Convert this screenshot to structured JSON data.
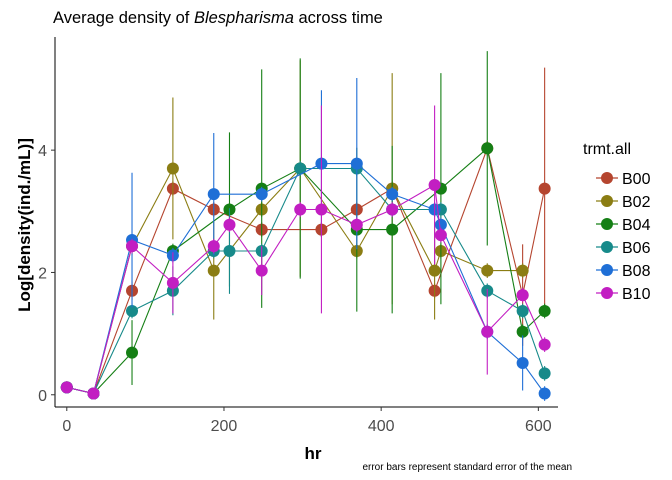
{
  "chart_data": {
    "type": "line",
    "title_parts": [
      "Average density of ",
      "Blespharisma",
      " across time"
    ],
    "xlabel": "hr",
    "ylabel": "Log[density(ind./mL)]",
    "caption": "error bars represent standard error of the mean",
    "legend_title": "trmt.all",
    "legend_position": "right",
    "grid": false,
    "xlim": [
      -15,
      625
    ],
    "ylim": [
      -0.2,
      5.85
    ],
    "x_ticks": [
      0,
      200,
      400,
      600
    ],
    "y_ticks": [
      0,
      2,
      4
    ],
    "series": [
      {
        "name": "B00",
        "color": "#b5452f",
        "points": [
          {
            "x": 0,
            "y": 0.12
          },
          {
            "x": 34,
            "y": 0.02
          },
          {
            "x": 83,
            "y": 1.7,
            "err": 0.15
          },
          {
            "x": 135,
            "y": 3.37,
            "err": 0.12
          },
          {
            "x": 187,
            "y": 3.03,
            "err": 0.12
          },
          {
            "x": 248,
            "y": 2.7,
            "err": 0.12
          },
          {
            "x": 324,
            "y": 2.7,
            "err": 0.12
          },
          {
            "x": 369,
            "y": 3.03,
            "err": 0.12
          },
          {
            "x": 414,
            "y": 3.37,
            "err": 0.12
          },
          {
            "x": 468,
            "y": 1.7,
            "err": 0.12
          },
          {
            "x": 535,
            "y": 4.03,
            "err": 0.12
          },
          {
            "x": 580,
            "y": 1.63,
            "err": 0.83
          },
          {
            "x": 608,
            "y": 3.37,
            "err": 1.98
          }
        ]
      },
      {
        "name": "B02",
        "color": "#8b7d13",
        "points": [
          {
            "x": 0,
            "y": 0.12
          },
          {
            "x": 34,
            "y": 0.02
          },
          {
            "x": 83,
            "y": 2.43,
            "err": 0.15
          },
          {
            "x": 135,
            "y": 3.7,
            "err": 1.16
          },
          {
            "x": 187,
            "y": 2.03,
            "err": 0.8
          },
          {
            "x": 248,
            "y": 3.03,
            "err": 0.12
          },
          {
            "x": 297,
            "y": 3.7,
            "err": 1.77
          },
          {
            "x": 369,
            "y": 2.35,
            "err": 0.12
          },
          {
            "x": 414,
            "y": 3.37,
            "err": 1.89
          },
          {
            "x": 468,
            "y": 2.03,
            "err": 0.8
          },
          {
            "x": 476,
            "y": 2.35,
            "err": 0.12
          },
          {
            "x": 535,
            "y": 2.03,
            "err": 0.12
          },
          {
            "x": 580,
            "y": 2.03,
            "err": 0.12
          }
        ]
      },
      {
        "name": "B04",
        "color": "#157f15",
        "points": [
          {
            "x": 0,
            "y": 0.12
          },
          {
            "x": 34,
            "y": 0.02
          },
          {
            "x": 83,
            "y": 0.69,
            "err": 0.53
          },
          {
            "x": 135,
            "y": 2.35,
            "err": 0.12
          },
          {
            "x": 207,
            "y": 3.03,
            "err": 1.26
          },
          {
            "x": 248,
            "y": 3.37,
            "err": 1.95
          },
          {
            "x": 297,
            "y": 3.7,
            "err": 1.8
          },
          {
            "x": 369,
            "y": 2.7,
            "err": 1.34
          },
          {
            "x": 414,
            "y": 2.7,
            "err": 1.37
          },
          {
            "x": 476,
            "y": 3.37,
            "err": 1.89
          },
          {
            "x": 535,
            "y": 4.03,
            "err": 1.59
          },
          {
            "x": 580,
            "y": 1.03,
            "err": 0.12
          },
          {
            "x": 608,
            "y": 1.37,
            "err": 0.12
          }
        ]
      },
      {
        "name": "B06",
        "color": "#178a8a",
        "points": [
          {
            "x": 0,
            "y": 0.12
          },
          {
            "x": 34,
            "y": 0.02
          },
          {
            "x": 83,
            "y": 1.37,
            "err": 0.12
          },
          {
            "x": 135,
            "y": 1.7,
            "err": 0.4
          },
          {
            "x": 187,
            "y": 2.35,
            "err": 0.12
          },
          {
            "x": 207,
            "y": 2.35,
            "err": 0.7
          },
          {
            "x": 248,
            "y": 2.35,
            "err": 0.12
          },
          {
            "x": 297,
            "y": 3.7,
            "err": 0.12
          },
          {
            "x": 369,
            "y": 3.7,
            "err": 0.12
          },
          {
            "x": 414,
            "y": 3.03,
            "err": 0.12
          },
          {
            "x": 476,
            "y": 3.03,
            "err": 0.12
          },
          {
            "x": 535,
            "y": 1.7,
            "err": 0.12
          },
          {
            "x": 580,
            "y": 1.37,
            "err": 0.12
          },
          {
            "x": 608,
            "y": 0.35,
            "err": 0.12
          }
        ]
      },
      {
        "name": "B08",
        "color": "#1f6fd6",
        "points": [
          {
            "x": 0,
            "y": 0.12
          },
          {
            "x": 34,
            "y": 0.02
          },
          {
            "x": 83,
            "y": 2.53,
            "err": 1.1
          },
          {
            "x": 135,
            "y": 2.28,
            "err": 0.12
          },
          {
            "x": 187,
            "y": 3.28,
            "err": 1.0
          },
          {
            "x": 248,
            "y": 3.28,
            "err": 0.12
          },
          {
            "x": 324,
            "y": 3.78,
            "err": 1.2
          },
          {
            "x": 369,
            "y": 3.78,
            "err": 1.4
          },
          {
            "x": 414,
            "y": 3.28,
            "err": 0.12
          },
          {
            "x": 468,
            "y": 3.03,
            "err": 0.12
          },
          {
            "x": 476,
            "y": 2.78,
            "err": 0.12
          },
          {
            "x": 535,
            "y": 1.03,
            "err": 0.12
          },
          {
            "x": 580,
            "y": 0.52,
            "err": 0.45
          },
          {
            "x": 608,
            "y": 0.02,
            "err": 0.12
          }
        ]
      },
      {
        "name": "B10",
        "color": "#c21ec2",
        "points": [
          {
            "x": 0,
            "y": 0.12
          },
          {
            "x": 34,
            "y": 0.02
          },
          {
            "x": 83,
            "y": 2.43,
            "err": 0.12
          },
          {
            "x": 135,
            "y": 1.83,
            "err": 0.5
          },
          {
            "x": 187,
            "y": 2.43,
            "err": 0.12
          },
          {
            "x": 207,
            "y": 2.78,
            "err": 0.12
          },
          {
            "x": 248,
            "y": 2.03,
            "err": 0.4
          },
          {
            "x": 297,
            "y": 3.03,
            "err": 0.12
          },
          {
            "x": 324,
            "y": 3.03,
            "err": 1.7
          },
          {
            "x": 369,
            "y": 2.78,
            "err": 0.12
          },
          {
            "x": 414,
            "y": 3.03,
            "err": 0.12
          },
          {
            "x": 468,
            "y": 3.43,
            "err": 1.3
          },
          {
            "x": 476,
            "y": 2.61,
            "err": 0.12
          },
          {
            "x": 535,
            "y": 1.03,
            "err": 0.7
          },
          {
            "x": 580,
            "y": 1.63,
            "err": 0.12
          },
          {
            "x": 608,
            "y": 0.82,
            "err": 0.12
          }
        ]
      }
    ]
  }
}
